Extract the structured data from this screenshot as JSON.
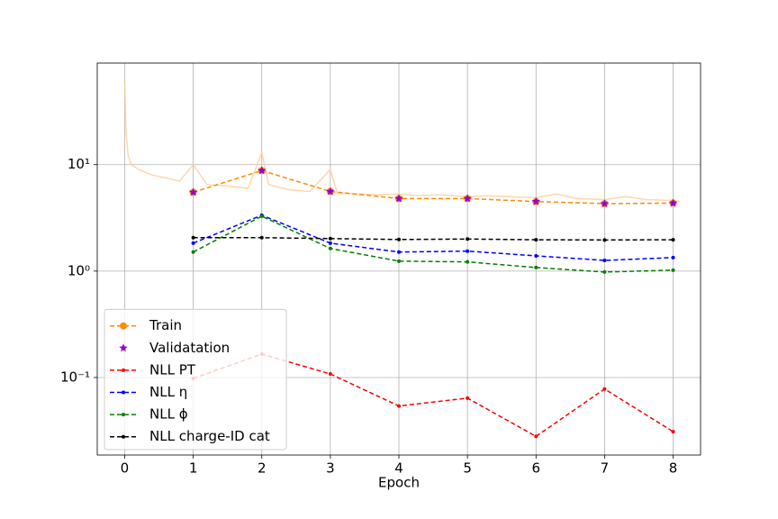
{
  "chart_data": {
    "type": "line",
    "xlabel": "Epoch",
    "log_y": true,
    "grid": true,
    "legend": "lower left",
    "xlim": [
      -0.4,
      8.4
    ],
    "xticks": [
      0,
      1,
      2,
      3,
      4,
      5,
      6,
      7,
      8
    ],
    "ylim": [
      0.0187,
      90
    ],
    "yticks": [
      {
        "value": 0.1,
        "label": "10⁻¹"
      },
      {
        "value": 1,
        "label": "10⁰"
      },
      {
        "value": 10,
        "label": "10¹"
      }
    ],
    "x": [
      1,
      2,
      3,
      4,
      5,
      6,
      7,
      8
    ],
    "series": [
      {
        "color": "#ffcc99",
        "x": [
          0,
          0.02,
          0.05,
          0.1,
          0.2,
          0.4,
          0.6,
          0.8,
          1.0,
          1.2,
          1.5,
          1.8,
          2.0,
          2.1,
          2.4,
          2.7,
          3.0,
          3.1,
          3.4,
          3.7,
          4.0,
          4.3,
          4.6,
          5.0,
          5.3,
          5.6,
          6.0,
          6.3,
          6.6,
          7.0,
          7.3,
          7.6,
          8.0,
          8.1
        ],
        "values": [
          60,
          20,
          12,
          10,
          9,
          8,
          7.5,
          7,
          10,
          6.5,
          6.3,
          6,
          13,
          6.5,
          5.8,
          5.6,
          9,
          5.4,
          5.3,
          5.2,
          5.3,
          5.1,
          5.2,
          5.0,
          5.1,
          5.0,
          4.9,
          5.3,
          4.8,
          4.7,
          5.0,
          4.7,
          4.6,
          4.5
        ]
      },
      {
        "name": "Train",
        "color": "#ff8c00",
        "marker": "circle",
        "line": true,
        "values": [
          5.5,
          8.8,
          5.6,
          4.8,
          4.8,
          4.5,
          4.3,
          4.35
        ]
      },
      {
        "name": "Validatation",
        "color": "#9400d3",
        "marker": "star",
        "line": false,
        "values": [
          5.5,
          8.8,
          5.6,
          4.8,
          4.8,
          4.5,
          4.3,
          4.35
        ]
      },
      {
        "name": "NLL PT",
        "color": "#ff0000",
        "marker": "dot",
        "line": true,
        "values": [
          0.098,
          0.166,
          0.108,
          0.054,
          0.064,
          0.028,
          0.078,
          0.031
        ]
      },
      {
        "name": "NLL η",
        "color": "#0000ff",
        "marker": "dot",
        "line": true,
        "values": [
          1.83,
          3.35,
          1.83,
          1.51,
          1.54,
          1.39,
          1.26,
          1.34
        ]
      },
      {
        "name": "NLL ϕ",
        "color": "#008000",
        "marker": "dot",
        "line": true,
        "values": [
          1.51,
          3.28,
          1.63,
          1.24,
          1.22,
          1.08,
          0.98,
          1.02
        ]
      },
      {
        "name": "NLL charge-ID cat",
        "color": "#000000",
        "marker": "dot",
        "line": true,
        "values": [
          2.06,
          2.06,
          2.02,
          1.98,
          2.0,
          1.97,
          1.96,
          1.97
        ]
      }
    ]
  }
}
